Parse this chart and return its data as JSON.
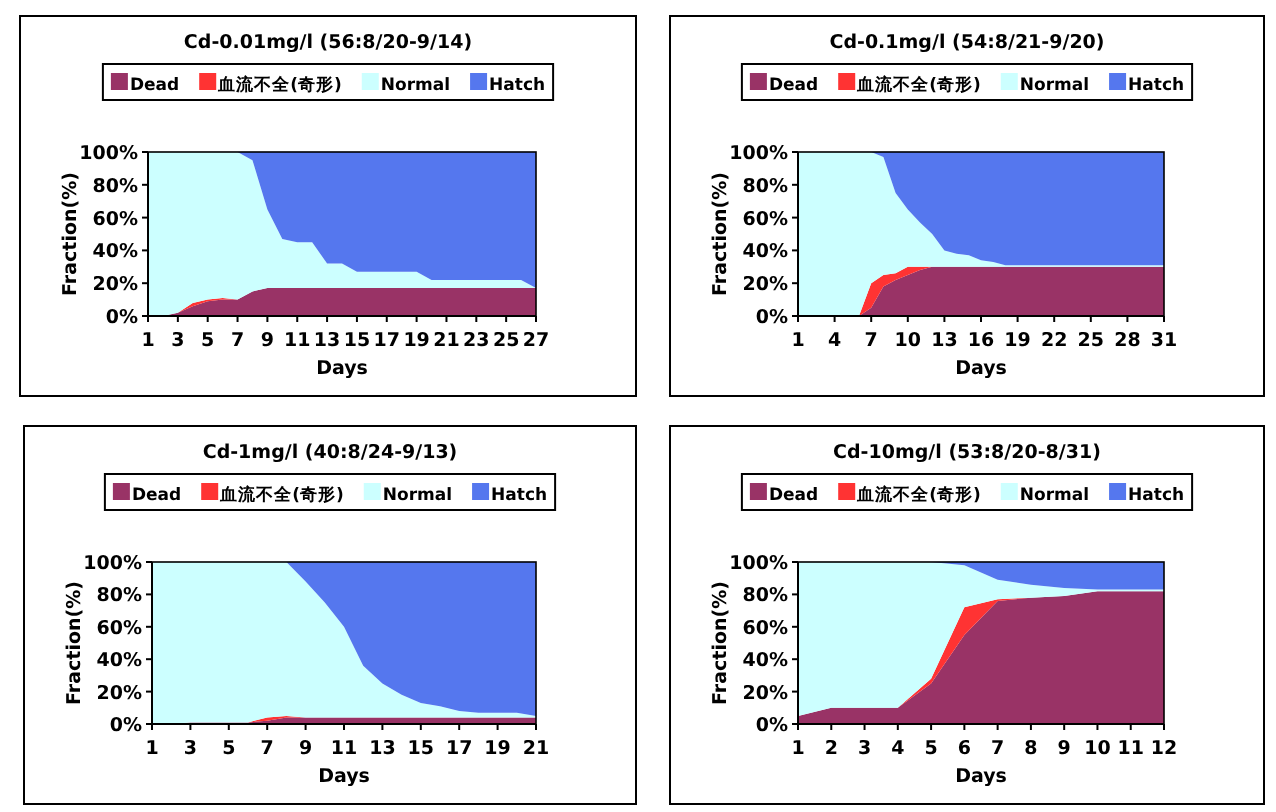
{
  "chart_data": [
    {
      "type": "area",
      "stacked": true,
      "title": "Cd-0.01mg/l (56:8/20-9/14)",
      "xlabel": "Days",
      "ylabel": "Fraction(%)",
      "legend": "top",
      "x": [
        1,
        2,
        3,
        4,
        5,
        6,
        7,
        8,
        9,
        10,
        11,
        12,
        13,
        14,
        15,
        16,
        17,
        18,
        19,
        20,
        21,
        22,
        23,
        24,
        25,
        26,
        27
      ],
      "xlim": [
        1,
        27
      ],
      "xticks": [
        1,
        3,
        5,
        7,
        9,
        11,
        13,
        15,
        17,
        19,
        21,
        23,
        25,
        27
      ],
      "ylim": [
        0,
        100
      ],
      "yticks": [
        {
          "value": 0,
          "label": "0%"
        },
        {
          "value": 20,
          "label": "20%"
        },
        {
          "value": 40,
          "label": "40%"
        },
        {
          "value": 60,
          "label": "60%"
        },
        {
          "value": 80,
          "label": "80%"
        },
        {
          "value": 100,
          "label": "100%"
        }
      ],
      "series": [
        {
          "name": "Dead",
          "color": "#993366",
          "values": [
            0,
            0,
            2,
            6,
            9,
            10,
            10,
            15,
            17,
            17,
            17,
            17,
            17,
            17,
            17,
            17,
            17,
            17,
            17,
            17,
            17,
            17,
            17,
            17,
            17,
            17,
            17
          ]
        },
        {
          "name": "血流不全(奇形)",
          "color": "#ff3333",
          "values": [
            null,
            null,
            0,
            2,
            1,
            1,
            0,
            null,
            null,
            null,
            null,
            null,
            null,
            null,
            null,
            null,
            null,
            null,
            null,
            null,
            null,
            null,
            null,
            null,
            null,
            null,
            null
          ]
        },
        {
          "name": "Normal",
          "color": "#ccffff",
          "values": [
            100,
            100,
            98,
            92,
            90,
            89,
            90,
            80,
            48,
            30,
            28,
            28,
            15,
            15,
            10,
            10,
            10,
            10,
            10,
            5,
            5,
            5,
            5,
            5,
            5,
            5,
            0
          ]
        },
        {
          "name": "Hatch",
          "color": "#5577ee",
          "values": [
            0,
            0,
            0,
            0,
            0,
            0,
            0,
            5,
            35,
            53,
            55,
            55,
            68,
            68,
            73,
            73,
            73,
            73,
            73,
            78,
            78,
            78,
            78,
            78,
            78,
            78,
            83
          ]
        }
      ]
    },
    {
      "type": "area",
      "stacked": true,
      "title": "Cd-0.1mg/l (54:8/21-9/20)",
      "xlabel": "Days",
      "ylabel": "Fraction(%)",
      "legend": "top",
      "x": [
        1,
        2,
        3,
        4,
        5,
        6,
        7,
        8,
        9,
        10,
        11,
        12,
        13,
        14,
        15,
        16,
        17,
        18,
        19,
        20,
        21,
        22,
        23,
        24,
        25,
        26,
        27,
        28,
        29,
        30,
        31
      ],
      "xlim": [
        1,
        31
      ],
      "xticks": [
        1,
        4,
        7,
        10,
        13,
        16,
        19,
        22,
        25,
        28,
        31
      ],
      "ylim": [
        0,
        100
      ],
      "yticks": [
        {
          "value": 0,
          "label": "0%"
        },
        {
          "value": 20,
          "label": "20%"
        },
        {
          "value": 40,
          "label": "40%"
        },
        {
          "value": 60,
          "label": "60%"
        },
        {
          "value": 80,
          "label": "80%"
        },
        {
          "value": 100,
          "label": "100%"
        }
      ],
      "series": [
        {
          "name": "Dead",
          "color": "#993366",
          "values": [
            0,
            0,
            0,
            0,
            0,
            0,
            5,
            18,
            22,
            25,
            28,
            30,
            30,
            30,
            30,
            30,
            30,
            30,
            30,
            30,
            30,
            30,
            30,
            30,
            30,
            30,
            30,
            30,
            30,
            30,
            30
          ]
        },
        {
          "name": "血流不全(奇形)",
          "color": "#ff3333",
          "values": [
            null,
            null,
            null,
            null,
            null,
            0,
            15,
            7,
            4,
            5,
            2,
            0,
            null,
            null,
            null,
            null,
            null,
            null,
            null,
            null,
            null,
            null,
            null,
            null,
            null,
            null,
            null,
            null,
            null,
            null,
            null
          ]
        },
        {
          "name": "Normal",
          "color": "#ccffff",
          "values": [
            100,
            100,
            100,
            100,
            100,
            100,
            80,
            72,
            49,
            35,
            27,
            20,
            10,
            8,
            7,
            4,
            3,
            1,
            1,
            1,
            1,
            1,
            1,
            1,
            1,
            1,
            1,
            1,
            1,
            1,
            1
          ]
        },
        {
          "name": "Hatch",
          "color": "#5577ee",
          "values": [
            0,
            0,
            0,
            0,
            0,
            0,
            0,
            3,
            25,
            35,
            43,
            50,
            60,
            62,
            63,
            66,
            67,
            69,
            69,
            69,
            69,
            69,
            69,
            69,
            69,
            69,
            69,
            69,
            69,
            69,
            69
          ]
        }
      ]
    },
    {
      "type": "area",
      "stacked": true,
      "title": "Cd-1mg/l (40:8/24-9/13)",
      "xlabel": "Days",
      "ylabel": "Fraction(%)",
      "legend": "top",
      "x": [
        1,
        2,
        3,
        4,
        5,
        6,
        7,
        8,
        9,
        10,
        11,
        12,
        13,
        14,
        15,
        16,
        17,
        18,
        19,
        20,
        21
      ],
      "xlim": [
        1,
        21
      ],
      "xticks": [
        1,
        3,
        5,
        7,
        9,
        11,
        13,
        15,
        17,
        19,
        21
      ],
      "ylim": [
        0,
        100
      ],
      "yticks": [
        {
          "value": 0,
          "label": "0%"
        },
        {
          "value": 20,
          "label": "20%"
        },
        {
          "value": 40,
          "label": "40%"
        },
        {
          "value": 60,
          "label": "60%"
        },
        {
          "value": 80,
          "label": "80%"
        },
        {
          "value": 100,
          "label": "100%"
        }
      ],
      "series": [
        {
          "name": "Dead",
          "color": "#993366",
          "values": [
            0,
            0,
            1,
            1,
            1,
            1,
            2,
            4,
            4,
            4,
            4,
            4,
            4,
            4,
            4,
            4,
            4,
            4,
            4,
            4,
            4
          ]
        },
        {
          "name": "血流不全(奇形)",
          "color": "#ff3333",
          "values": [
            null,
            null,
            null,
            null,
            null,
            0,
            2,
            1,
            0,
            null,
            null,
            null,
            null,
            null,
            null,
            null,
            null,
            null,
            null,
            null,
            null
          ]
        },
        {
          "name": "Normal",
          "color": "#ccffff",
          "values": [
            100,
            100,
            99,
            99,
            99,
            99,
            96,
            95,
            84,
            71,
            56,
            32,
            21,
            14,
            9,
            7,
            4,
            3,
            3,
            3,
            1
          ]
        },
        {
          "name": "Hatch",
          "color": "#5577ee",
          "values": [
            0,
            0,
            0,
            0,
            0,
            0,
            0,
            0,
            12,
            25,
            40,
            64,
            75,
            82,
            87,
            89,
            92,
            93,
            93,
            93,
            95
          ]
        }
      ]
    },
    {
      "type": "area",
      "stacked": true,
      "title": "Cd-10mg/l (53:8/20-8/31)",
      "xlabel": "Days",
      "ylabel": "Fraction(%)",
      "legend": "top",
      "x": [
        1,
        2,
        3,
        4,
        5,
        6,
        7,
        8,
        9,
        10,
        11,
        12
      ],
      "xlim": [
        1,
        12
      ],
      "xticks": [
        1,
        2,
        3,
        4,
        5,
        6,
        7,
        8,
        9,
        10,
        11,
        12
      ],
      "ylim": [
        0,
        100
      ],
      "yticks": [
        {
          "value": 0,
          "label": "0%"
        },
        {
          "value": 20,
          "label": "20%"
        },
        {
          "value": 40,
          "label": "40%"
        },
        {
          "value": 60,
          "label": "60%"
        },
        {
          "value": 80,
          "label": "80%"
        },
        {
          "value": 100,
          "label": "100%"
        }
      ],
      "series": [
        {
          "name": "Dead",
          "color": "#993366",
          "values": [
            5,
            10,
            10,
            10,
            25,
            55,
            76,
            78,
            79,
            82,
            82,
            82
          ]
        },
        {
          "name": "血流不全(奇形)",
          "color": "#ff3333",
          "values": [
            null,
            null,
            null,
            0,
            3,
            17,
            1,
            0,
            null,
            null,
            null,
            null
          ]
        },
        {
          "name": "Normal",
          "color": "#ccffff",
          "values": [
            95,
            90,
            90,
            90,
            72,
            26,
            12,
            8,
            5,
            1,
            1,
            1
          ]
        },
        {
          "name": "Hatch",
          "color": "#5577ee",
          "values": [
            0,
            0,
            0,
            0,
            0,
            2,
            11,
            14,
            16,
            17,
            17,
            17
          ]
        }
      ]
    }
  ]
}
